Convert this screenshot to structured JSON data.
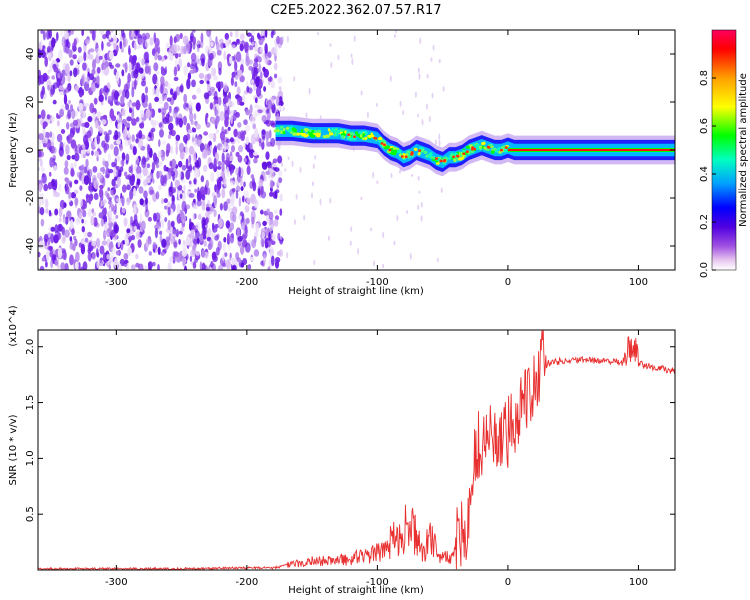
{
  "title": "C2E5.2022.362.07.57.R17",
  "chart_data": [
    {
      "type": "heatmap",
      "xlabel": "Height of straight line (km)",
      "ylabel": "Frequency (Hz)",
      "xlim": [
        -360,
        128
      ],
      "ylim": [
        -50,
        50
      ],
      "xticks": [
        -300,
        -200,
        -100,
        0,
        100
      ],
      "yticks": [
        -40,
        -20,
        0,
        20,
        40
      ],
      "colorbar": {
        "label": "Normalized spectral amplitude",
        "range": [
          0,
          1
        ],
        "ticks": [
          0.0,
          0.2,
          0.4,
          0.6,
          0.8
        ],
        "colors": [
          "#ffffff",
          "#e8c8f0",
          "#a050e0",
          "#5000e0",
          "#0000ff",
          "#00a0ff",
          "#00ffc0",
          "#00ff00",
          "#ffff00",
          "#ffa000",
          "#ff0000"
        ]
      },
      "noise_region_x": [
        -360,
        -178
      ],
      "ridge": {
        "x": [
          -178,
          -165,
          -150,
          -140,
          -130,
          -120,
          -110,
          -100,
          -95,
          -90,
          -85,
          -80,
          -75,
          -70,
          -65,
          -60,
          -55,
          -50,
          -45,
          -40,
          -35,
          -30,
          -25,
          -20,
          -15,
          -10,
          -5,
          0,
          5,
          30,
          60,
          90,
          128
        ],
        "y": [
          8,
          8,
          7,
          7,
          7,
          6,
          6,
          5,
          2,
          0,
          -1,
          -3,
          -2,
          0,
          -1,
          -2,
          -4,
          -5,
          -3,
          -3,
          -2,
          0,
          1,
          2,
          1,
          0,
          0,
          1,
          0,
          0,
          0,
          0,
          0
        ]
      }
    },
    {
      "type": "line",
      "xlabel": "Height of straight line (km)",
      "ylabel": "SNR (10 * v/v)",
      "y_multiplier": "(x10^4)",
      "xlim": [
        -360,
        128
      ],
      "ylim": [
        0,
        2.15
      ],
      "xticks": [
        -300,
        -200,
        -100,
        0,
        100
      ],
      "yticks": [
        0.5,
        1.0,
        1.5,
        2.0
      ],
      "color": "#e83030",
      "series": [
        {
          "x": [
            -360,
            -300,
            -250,
            -200,
            -180,
            -160,
            -150,
            -140,
            -120,
            -100,
            -95,
            -90,
            -85,
            -80,
            -75,
            -70,
            -65,
            -60,
            -55,
            -50,
            -45,
            -40,
            -35,
            -30,
            -25,
            -20,
            -15,
            -10,
            -5,
            0,
            5,
            10,
            15,
            20,
            25,
            30,
            40,
            60,
            80,
            90,
            95,
            100,
            110,
            128
          ],
          "y": [
            0.01,
            0.01,
            0.01,
            0.02,
            0.02,
            0.06,
            0.08,
            0.08,
            0.1,
            0.15,
            0.2,
            0.25,
            0.3,
            0.35,
            0.4,
            0.3,
            0.12,
            0.3,
            0.2,
            0.1,
            0.12,
            0.2,
            0.3,
            0.5,
            1.05,
            1.1,
            1.2,
            1.2,
            1.1,
            1.2,
            1.35,
            1.5,
            1.6,
            1.7,
            1.8,
            1.85,
            1.87,
            1.88,
            1.87,
            1.85,
            1.95,
            1.85,
            1.82,
            1.78
          ]
        }
      ]
    }
  ]
}
